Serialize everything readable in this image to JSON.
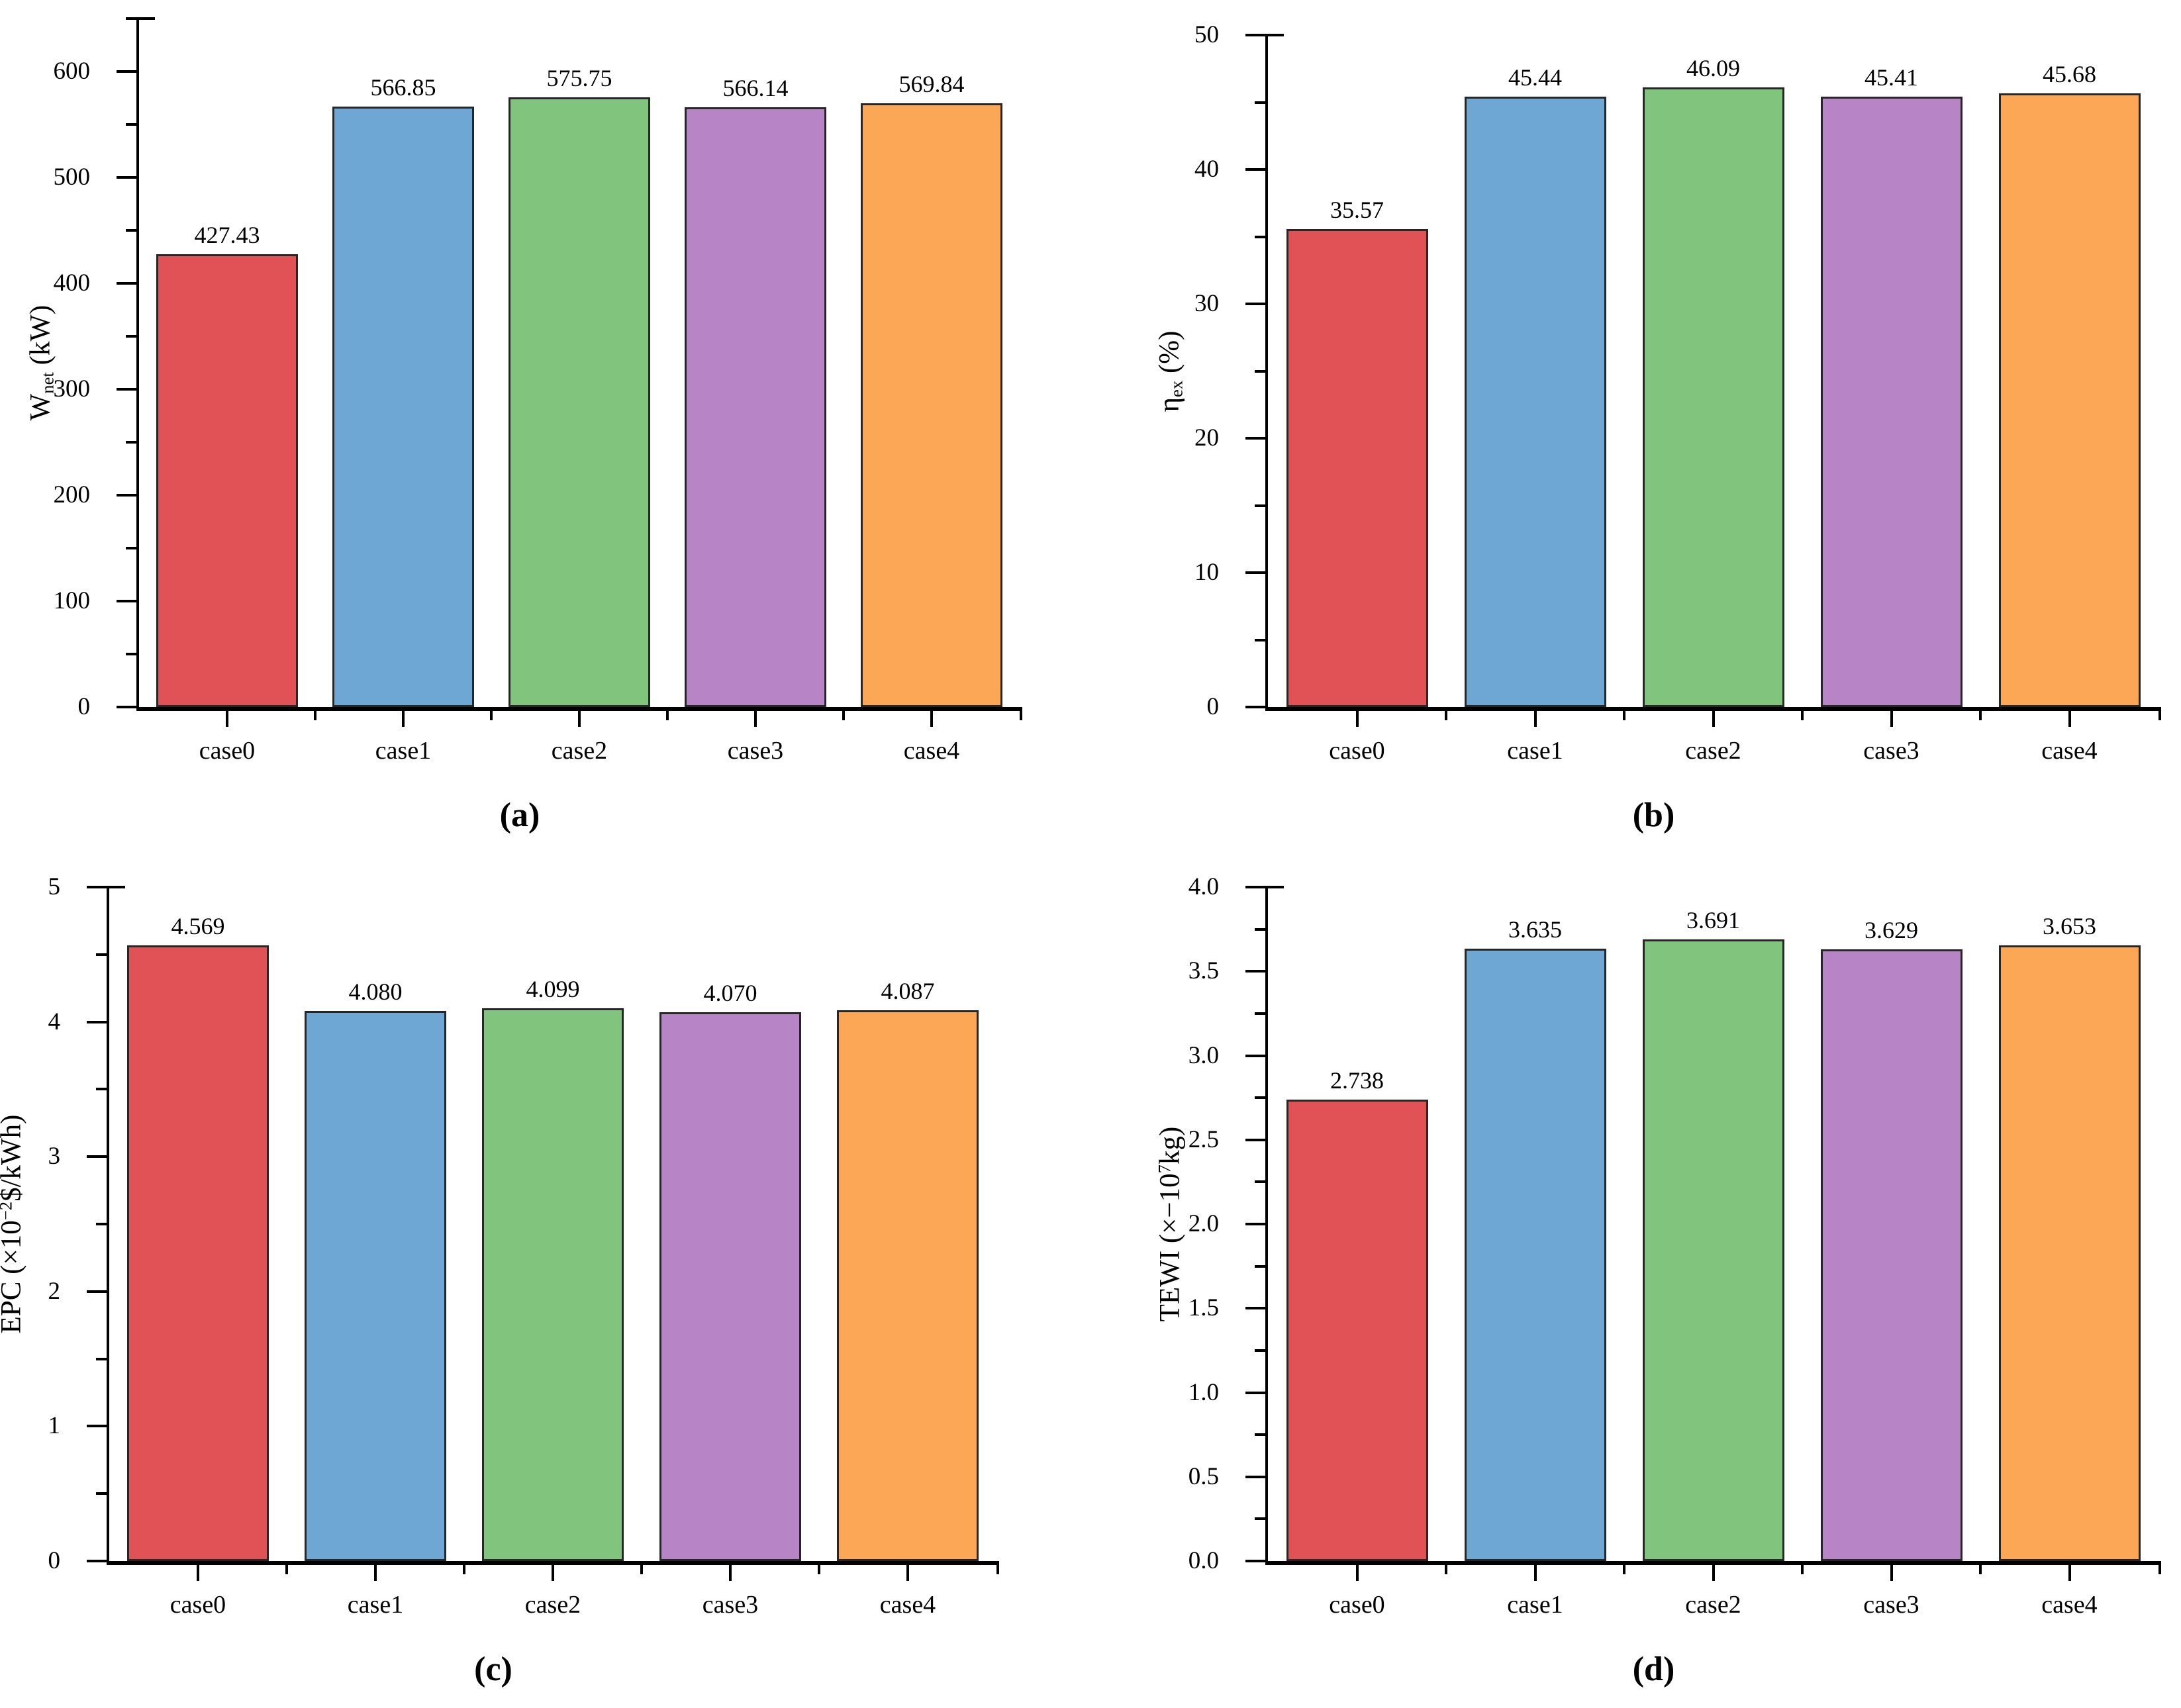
{
  "figure": {
    "background": "#ffffff",
    "axis_color": "#000000",
    "bar_border_color": "#262626",
    "bar_colors": [
      "#E05255",
      "#6EA7D4",
      "#80C47E",
      "#B785C5",
      "#FBA756"
    ]
  },
  "chart_data": [
    {
      "id": "a",
      "type": "bar",
      "caption": "(a)",
      "title": "",
      "xlabel": "",
      "ylabel": "Wnet (kW)",
      "ylabel_parts": [
        {
          "t": "W"
        },
        {
          "t": "net",
          "sub": true
        },
        {
          "t": " (kW)"
        }
      ],
      "categories": [
        "case0",
        "case1",
        "case2",
        "case3",
        "case4"
      ],
      "values": [
        427.43,
        566.85,
        575.75,
        566.14,
        569.84
      ],
      "value_labels": [
        "427.43",
        "566.85",
        "575.75",
        "566.14",
        "569.84"
      ],
      "ylim": [
        0,
        650
      ],
      "ytick_major": 100,
      "ytick_minor": 50,
      "ytick_decimals": 0,
      "grid": false,
      "legend": null
    },
    {
      "id": "b",
      "type": "bar",
      "caption": "(b)",
      "title": "",
      "xlabel": "",
      "ylabel": "ηex (%)",
      "ylabel_parts": [
        {
          "t": "η"
        },
        {
          "t": "ex",
          "sub": true
        },
        {
          "t": " (%)"
        }
      ],
      "categories": [
        "case0",
        "case1",
        "case2",
        "case3",
        "case4"
      ],
      "values": [
        35.57,
        45.44,
        46.09,
        45.41,
        45.68
      ],
      "value_labels": [
        "35.57",
        "45.44",
        "46.09",
        "45.41",
        "45.68"
      ],
      "ylim": [
        0,
        50
      ],
      "ytick_major": 10,
      "ytick_minor": 5,
      "ytick_decimals": 0,
      "grid": false,
      "legend": null
    },
    {
      "id": "c",
      "type": "bar",
      "caption": "(c)",
      "title": "",
      "xlabel": "",
      "ylabel": "EPC (×10−2$/kWh)",
      "ylabel_parts": [
        {
          "t": "EPC (×10"
        },
        {
          "t": "−2",
          "sup": true
        },
        {
          "t": "$/kWh)"
        }
      ],
      "categories": [
        "case0",
        "case1",
        "case2",
        "case3",
        "case4"
      ],
      "values": [
        4.569,
        4.08,
        4.099,
        4.07,
        4.087
      ],
      "value_labels": [
        "4.569",
        "4.080",
        "4.099",
        "4.070",
        "4.087"
      ],
      "ylim": [
        0,
        5
      ],
      "ytick_major": 1,
      "ytick_minor": 0.5,
      "ytick_decimals": 0,
      "grid": false,
      "legend": null
    },
    {
      "id": "d",
      "type": "bar",
      "caption": "(d)",
      "title": "",
      "xlabel": "",
      "ylabel": "TEWI (×−107kg)",
      "ylabel_parts": [
        {
          "t": "TEWI (×−10"
        },
        {
          "t": "7",
          "sup": true
        },
        {
          "t": "kg)"
        }
      ],
      "categories": [
        "case0",
        "case1",
        "case2",
        "case3",
        "case4"
      ],
      "values": [
        2.738,
        3.635,
        3.691,
        3.629,
        3.653
      ],
      "value_labels": [
        "2.738",
        "3.635",
        "3.691",
        "3.629",
        "3.653"
      ],
      "ylim": [
        0,
        4
      ],
      "ytick_major": 0.5,
      "ytick_minor": 0.25,
      "ytick_decimals": 1,
      "grid": false,
      "legend": null
    }
  ]
}
